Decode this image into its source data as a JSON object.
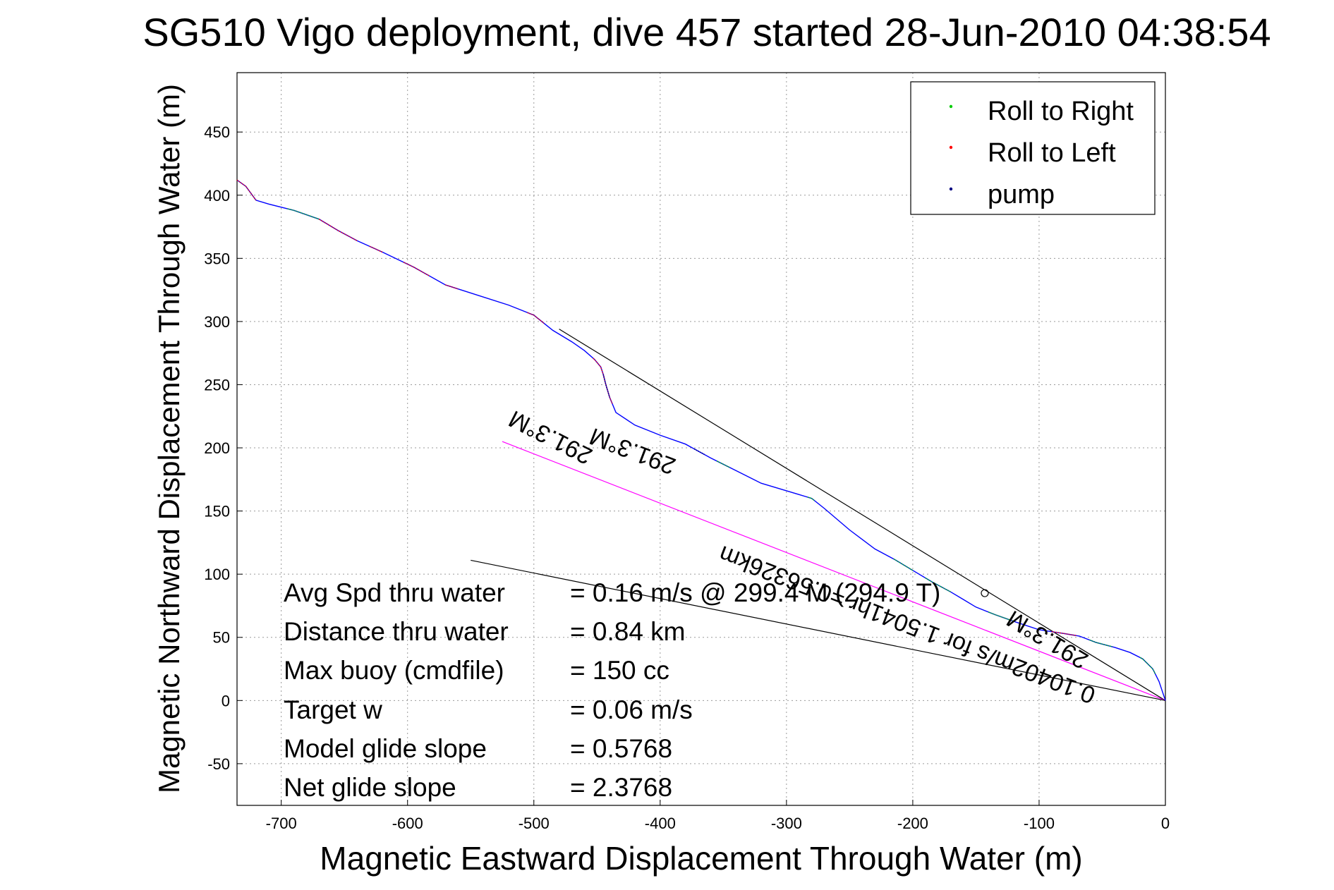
{
  "chart_data": {
    "type": "line",
    "title": "SG510 Vigo deployment, dive 457 started 28-Jun-2010 04:38:54",
    "xlabel": "Magnetic Eastward Displacement Through Water (m)",
    "ylabel": "Magnetic Northward Displacement Through Water (m)",
    "xlim": [
      -735,
      0
    ],
    "ylim": [
      -83,
      497
    ],
    "xticks": [
      -700,
      -600,
      -500,
      -400,
      -300,
      -200,
      -100,
      0
    ],
    "yticks": [
      -50,
      0,
      50,
      100,
      150,
      200,
      250,
      300,
      350,
      400,
      450
    ],
    "grid": true,
    "legend_position": "top-right",
    "legend": [
      {
        "label": "Roll to Right",
        "color": "#00cc00"
      },
      {
        "label": "Roll to Left",
        "color": "#ff0000"
      },
      {
        "label": "pump",
        "color": "#000080"
      }
    ],
    "colors": {
      "track": "#0000ff",
      "roll_right": "#00cc00",
      "roll_left": "#ff0000",
      "pump": "#000080",
      "current_line": "#000000",
      "mean_line": "#ff00ff"
    },
    "series": [
      {
        "kind": "track",
        "x": [
          0,
          -5,
          -10,
          -18,
          -28,
          -40,
          -55,
          -68,
          -80,
          -100,
          -118,
          -135,
          -150,
          -160,
          -170,
          -185,
          -200,
          -215,
          -230,
          -250,
          -270,
          -280,
          -290,
          -300,
          -320,
          -340,
          -360,
          -380,
          -400,
          -420,
          -435,
          -440,
          -443,
          -445,
          -447,
          -452,
          -460,
          -470,
          -485,
          -500,
          -520,
          -545,
          -570,
          -595,
          -620,
          -640,
          -655,
          -670,
          -690,
          -710,
          -720,
          -728,
          -735
        ],
        "y": [
          0,
          15,
          25,
          33,
          38,
          42,
          46,
          51,
          53,
          56,
          62,
          68,
          74,
          80,
          86,
          94,
          103,
          112,
          120,
          135,
          152,
          160,
          163,
          166,
          172,
          182,
          192,
          203,
          210,
          218,
          228,
          240,
          250,
          258,
          264,
          270,
          277,
          284,
          293,
          305,
          313,
          321,
          329,
          343,
          355,
          364,
          372,
          381,
          388,
          393,
          396,
          407,
          412
        ]
      }
    ],
    "roll_right_segments": [
      [
        -60,
        -42
      ],
      [
        -20,
        -8
      ],
      [
        -140,
        -120
      ],
      [
        -190,
        -170
      ],
      [
        -215,
        -200
      ],
      [
        -283,
        -278
      ],
      [
        -355,
        -345
      ],
      [
        -695,
        -670
      ]
    ],
    "roll_left_segments": [
      [
        -735,
        -720
      ],
      [
        -670,
        -640
      ],
      [
        -630,
        -620
      ],
      [
        -603,
        -583
      ],
      [
        -570,
        -560
      ],
      [
        -505,
        -492
      ],
      [
        -453,
        -438
      ],
      [
        -90,
        -70
      ]
    ],
    "pump_segments": [
      [
        -373,
        -365
      ],
      [
        -445,
        -440
      ]
    ],
    "annotation_lines": [
      {
        "kind": "depth-averaged current",
        "x": [
          0,
          -480
        ],
        "y": [
          0,
          294
        ]
      },
      {
        "kind": "mean track",
        "x": [
          0,
          -525
        ],
        "y": [
          0,
          205
        ]
      },
      {
        "kind": "lower bound",
        "x": [
          0,
          -550
        ],
        "y": [
          0,
          111
        ]
      }
    ],
    "marker": {
      "x": -143,
      "y": 85
    },
    "rotated_annotations": [
      "0.10402m/s for 1.5041hr =0.56326km",
      "291.3°M",
      "291.3°M",
      "291.3°M"
    ],
    "stats": [
      {
        "label": "Avg Spd thru water",
        "value": "=  0.16 m/s @ 299.4  M (294.9  T)"
      },
      {
        "label": "Distance thru water",
        "value": "=  0.84 km"
      },
      {
        "label": "Max buoy (cmdfile)",
        "value": "= 150 cc"
      },
      {
        "label": "Target w",
        "value": "= 0.06 m/s"
      },
      {
        "label": "Model glide slope",
        "value": "= 0.5768"
      },
      {
        "label": "Net glide slope",
        "value": "= 2.3768"
      }
    ]
  }
}
